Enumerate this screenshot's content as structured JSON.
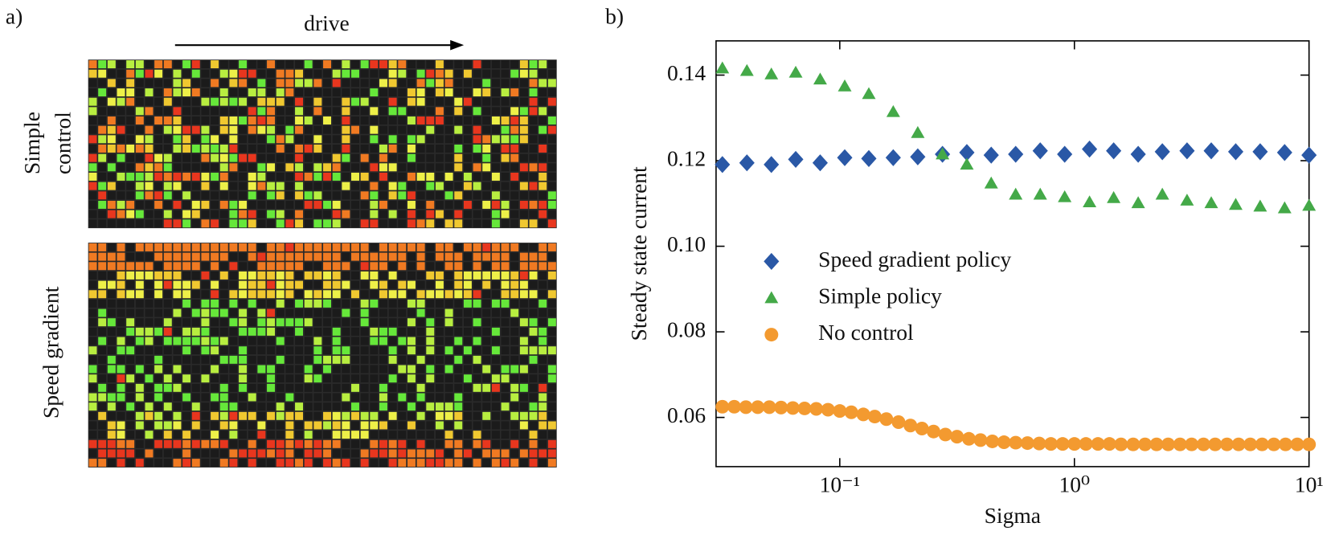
{
  "chart_data": {
    "type": "scatter",
    "panel_a": {
      "label": "a)",
      "arrow_label": "drive",
      "top_label_lines": [
        "Simple",
        "control"
      ],
      "bottom_label": "Speed gradient"
    },
    "panel_b": {
      "label": "b)"
    },
    "xlabel": "Sigma",
    "ylabel": "Steady state current",
    "xscale": "log",
    "xlim": [
      0.0297,
      10
    ],
    "ylim": [
      0.0485,
      0.148
    ],
    "xticks": [
      {
        "value": 0.1,
        "label": "10⁻¹"
      },
      {
        "value": 1,
        "label": "10⁰"
      },
      {
        "value": 10,
        "label": "10¹"
      }
    ],
    "yticks": [
      0.06,
      0.08,
      {
        "value": 0.1,
        "label": "0.10"
      },
      0.12,
      0.14
    ],
    "legend": "center left",
    "series": [
      {
        "name": "Speed gradient policy",
        "marker": "diamond",
        "color": "#2a58a6",
        "x": [
          0.0316,
          0.0402,
          0.0511,
          0.0649,
          0.0825,
          0.105,
          0.133,
          0.169,
          0.215,
          0.274,
          0.348,
          0.442,
          0.562,
          0.715,
          0.909,
          1.16,
          1.47,
          1.87,
          2.37,
          3.02,
          3.83,
          4.87,
          6.19,
          7.87,
          10
        ],
        "values": [
          0.1191,
          0.1195,
          0.1191,
          0.1203,
          0.1195,
          0.1207,
          0.1205,
          0.1207,
          0.1209,
          0.1215,
          0.1219,
          0.1213,
          0.1215,
          0.1223,
          0.1215,
          0.1227,
          0.1223,
          0.1215,
          0.1221,
          0.1223,
          0.1223,
          0.1221,
          0.1221,
          0.1219,
          0.1213
        ]
      },
      {
        "name": "Simple policy",
        "marker": "triangle",
        "color": "#44a948",
        "x": [
          0.0316,
          0.0402,
          0.0511,
          0.0649,
          0.0825,
          0.105,
          0.133,
          0.169,
          0.215,
          0.274,
          0.348,
          0.442,
          0.562,
          0.715,
          0.909,
          1.16,
          1.47,
          1.87,
          2.37,
          3.02,
          3.83,
          4.87,
          6.19,
          7.87,
          10
        ],
        "values": [
          0.1416,
          0.141,
          0.1402,
          0.1406,
          0.139,
          0.1374,
          0.1356,
          0.1314,
          0.1265,
          0.1215,
          0.1191,
          0.1147,
          0.1121,
          0.1121,
          0.1115,
          0.1103,
          0.1113,
          0.1101,
          0.1121,
          0.1107,
          0.1101,
          0.1097,
          0.1093,
          0.1089,
          0.1095
        ]
      },
      {
        "name": "No control",
        "marker": "circle",
        "color": "#f39a30",
        "x": [
          0.0316,
          0.0355,
          0.0398,
          0.0447,
          0.0501,
          0.0562,
          0.0631,
          0.0708,
          0.0794,
          0.0891,
          0.1,
          0.112,
          0.126,
          0.141,
          0.158,
          0.178,
          0.2,
          0.224,
          0.251,
          0.282,
          0.316,
          0.355,
          0.398,
          0.447,
          0.501,
          0.562,
          0.631,
          0.708,
          0.794,
          0.891,
          1,
          1.12,
          1.26,
          1.41,
          1.58,
          1.78,
          2,
          2.24,
          2.51,
          2.82,
          3.16,
          3.55,
          3.98,
          4.47,
          5.01,
          5.62,
          6.31,
          7.08,
          7.94,
          8.91,
          10
        ],
        "values": [
          0.0625,
          0.0625,
          0.0624,
          0.0624,
          0.0624,
          0.0623,
          0.0622,
          0.0621,
          0.062,
          0.0618,
          0.0615,
          0.0612,
          0.0607,
          0.0602,
          0.0596,
          0.0589,
          0.0581,
          0.0574,
          0.0567,
          0.056,
          0.0555,
          0.055,
          0.0547,
          0.0544,
          0.0542,
          0.0541,
          0.054,
          0.0539,
          0.0538,
          0.0538,
          0.0538,
          0.0538,
          0.0538,
          0.0538,
          0.0537,
          0.0537,
          0.0537,
          0.0537,
          0.0537,
          0.0537,
          0.0537,
          0.0537,
          0.0537,
          0.0537,
          0.0537,
          0.0537,
          0.0537,
          0.0537,
          0.0537,
          0.0537,
          0.0537
        ]
      }
    ]
  }
}
